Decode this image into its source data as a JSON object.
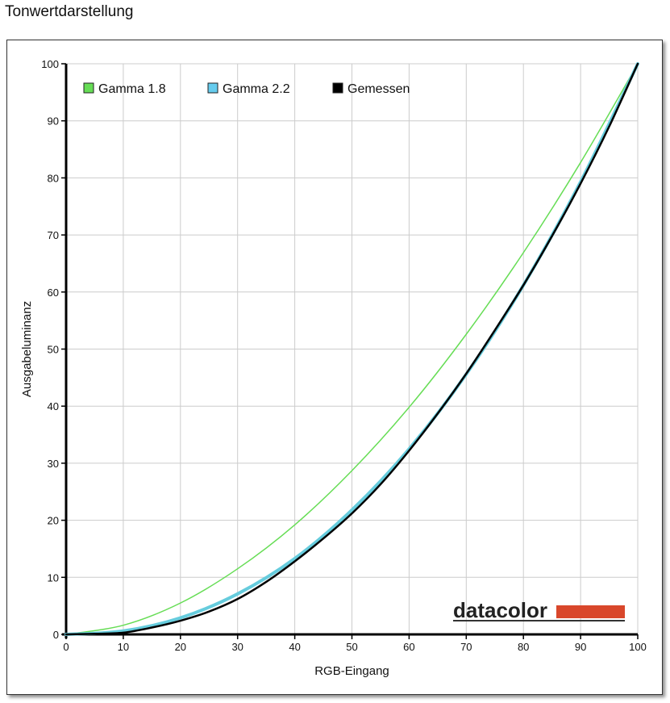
{
  "page": {
    "title": "Tonwertdarstellung"
  },
  "logo": {
    "text": "datacolor",
    "bar_color": "#d9472b"
  },
  "chart_data": {
    "type": "line",
    "xlabel": "RGB-Eingang",
    "ylabel": "Ausgabeluminanz",
    "xlim": [
      0,
      100
    ],
    "ylim": [
      0,
      100
    ],
    "xticks": [
      0,
      10,
      20,
      30,
      40,
      50,
      60,
      70,
      80,
      90,
      100
    ],
    "yticks": [
      0,
      10,
      20,
      30,
      40,
      50,
      60,
      70,
      80,
      90,
      100
    ],
    "grid": true,
    "legend": "top-left",
    "series": [
      {
        "name": "Gamma 1.8",
        "color": "#66dd55",
        "legend_fill": "#66dd55",
        "width": 1.5,
        "x": [
          0,
          10,
          20,
          30,
          40,
          50,
          60,
          70,
          80,
          90,
          100
        ],
        "y": [
          0,
          1.6,
          5.5,
          11.5,
          19.2,
          28.7,
          39.8,
          52.6,
          66.9,
          82.7,
          100
        ]
      },
      {
        "name": "Gamma 2.2",
        "color": "#66ccdd",
        "legend_fill": "#66ccee",
        "width": 4,
        "x": [
          0,
          10,
          20,
          30,
          40,
          50,
          60,
          70,
          80,
          90,
          100
        ],
        "y": [
          0,
          0.6,
          2.9,
          7.1,
          13.3,
          21.8,
          32.5,
          45.6,
          61.2,
          79.3,
          100
        ]
      },
      {
        "name": "Gemessen",
        "color": "#000000",
        "legend_fill": "#000000",
        "width": 2.5,
        "x": [
          0,
          5,
          10,
          15,
          20,
          25,
          30,
          35,
          40,
          45,
          50,
          55,
          60,
          65,
          70,
          75,
          80,
          85,
          90,
          95,
          100
        ],
        "y": [
          0,
          0.1,
          0.3,
          1.2,
          2.4,
          4.0,
          6.2,
          9.2,
          12.8,
          16.8,
          21.2,
          26.3,
          32.2,
          38.7,
          45.7,
          53.3,
          61.2,
          69.8,
          79.0,
          89.0,
          100
        ]
      }
    ]
  }
}
